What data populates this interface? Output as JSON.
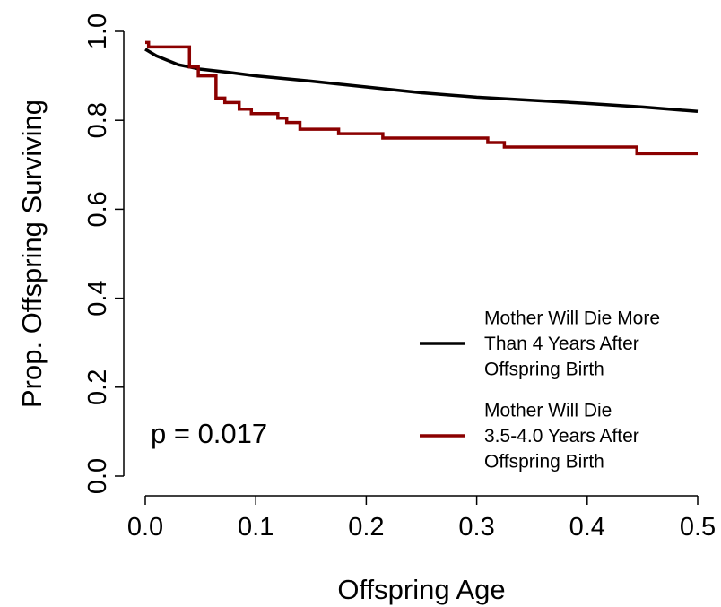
{
  "chart_data": {
    "type": "line",
    "x_label": "Offspring Age",
    "y_label": "Prop. Offspring Surviving",
    "annotation": "p = 0.017",
    "xlim": [
      0,
      0.5
    ],
    "ylim": [
      0,
      1
    ],
    "xticks": [
      {
        "value": 0,
        "label": "0.0"
      },
      0.1,
      0.2,
      0.3,
      0.4,
      0.5
    ],
    "yticks": [
      {
        "value": 0,
        "label": "0.0"
      },
      0.2,
      0.4,
      0.6,
      0.8,
      {
        "value": 1,
        "label": "1.0"
      }
    ],
    "legend": "right",
    "series": [
      {
        "name": "Mother Will Die More\nThan 4 Years After\nOffspring Birth",
        "color": "#000000",
        "drawstyle": "line",
        "x": [
          0,
          0.01,
          0.02,
          0.03,
          0.05,
          0.075,
          0.1,
          0.15,
          0.2,
          0.25,
          0.3,
          0.35,
          0.4,
          0.45,
          0.5
        ],
        "values": [
          0.96,
          0.945,
          0.935,
          0.925,
          0.915,
          0.908,
          0.9,
          0.888,
          0.875,
          0.862,
          0.852,
          0.845,
          0.838,
          0.83,
          0.82
        ]
      },
      {
        "name": "Mother Will Die\n3.5-4.0 Years After\nOffspring Birth",
        "color": "#8b0000",
        "drawstyle": "steps-post",
        "x": [
          0,
          0.003,
          0.04,
          0.048,
          0.064,
          0.072,
          0.085,
          0.096,
          0.12,
          0.128,
          0.14,
          0.175,
          0.215,
          0.31,
          0.325,
          0.445,
          0.5
        ],
        "values": [
          0.975,
          0.965,
          0.92,
          0.9,
          0.85,
          0.84,
          0.825,
          0.815,
          0.805,
          0.795,
          0.78,
          0.77,
          0.76,
          0.75,
          0.74,
          0.725,
          0.725
        ]
      }
    ]
  }
}
